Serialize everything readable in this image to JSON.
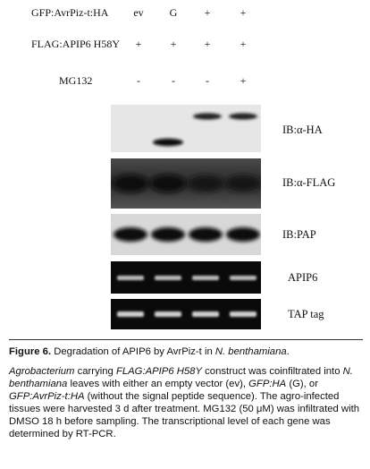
{
  "figure": {
    "rows": [
      {
        "label": "GFP:AvrPiz-t:HA",
        "values": [
          "ev",
          "G",
          "+",
          "+"
        ]
      },
      {
        "label": "FLAG:APIP6 H58Y",
        "values": [
          "+",
          "+",
          "+",
          "+"
        ]
      },
      {
        "label": "MG132",
        "values": [
          "-",
          "-",
          "-",
          "+"
        ]
      }
    ],
    "panels": [
      {
        "label": "IB:α-HA",
        "type": "western",
        "bands": [
          0,
          1,
          1,
          1
        ]
      },
      {
        "label": "IB:α-FLAG",
        "type": "western",
        "bands": [
          1,
          1,
          1,
          1
        ]
      },
      {
        "label": "IB:PAP",
        "type": "western",
        "bands": [
          1,
          1,
          1,
          1
        ]
      },
      {
        "label": "APIP6",
        "type": "gel",
        "bands": [
          1,
          1,
          1,
          1
        ]
      },
      {
        "label": "TAP tag",
        "type": "gel",
        "bands": [
          1,
          1,
          1,
          1
        ]
      }
    ]
  },
  "caption": {
    "title_bold": "Figure 6.",
    "title_pre": " Degradation of APIP6 by AvrPiz-t in ",
    "title_italic": "N. benthamiana",
    "title_post": ".",
    "body": [
      {
        "t": "Agrobacterium",
        "i": true
      },
      {
        "t": " carrying ",
        "i": false
      },
      {
        "t": "FLAG:APIP6 H58Y",
        "i": true
      },
      {
        "t": " construct was coinfiltrated into ",
        "i": false
      },
      {
        "t": "N. benthamiana",
        "i": true
      },
      {
        "t": " leaves with either an empty vector (ev), ",
        "i": false
      },
      {
        "t": "GFP:HA",
        "i": true
      },
      {
        "t": " (G), or ",
        "i": false
      },
      {
        "t": "GFP:AvrPiz-t:HA",
        "i": true
      },
      {
        "t": " (without the signal peptide sequence). The agro-infected tissues were harvested 3 d after treatment. MG132 (50 μM) was infiltrated with DMSO 18 h before sampling. The transcriptional level of each gene was determined by RT-PCR.",
        "i": false
      }
    ]
  }
}
